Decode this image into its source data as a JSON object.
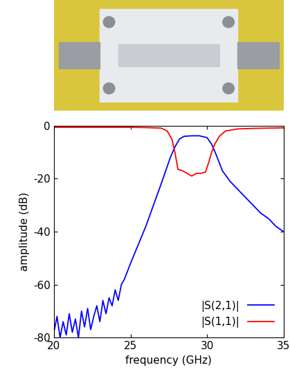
{
  "chart_data": {
    "type": "line",
    "x_label": "frequency (GHz)",
    "y_label": "amplitude (dB)",
    "xlim": [
      20,
      35
    ],
    "ylim": [
      -80,
      0
    ],
    "xticks": [
      20,
      25,
      30,
      35
    ],
    "yticks": [
      -80,
      -60,
      -40,
      -20,
      0
    ],
    "grid": false,
    "legend": "lower right",
    "series": [
      {
        "name": "|S(2,1)|",
        "color": "#0000ff",
        "x": [
          20.0,
          20.2,
          20.4,
          20.6,
          20.8,
          21.0,
          21.2,
          21.4,
          21.6,
          21.8,
          22.0,
          22.2,
          22.4,
          22.6,
          22.8,
          23.0,
          23.2,
          23.4,
          23.6,
          23.8,
          24.0,
          24.2,
          24.4,
          24.6,
          24.8,
          25.0,
          25.5,
          26.0,
          26.5,
          27.0,
          27.3,
          27.6,
          27.9,
          28.2,
          28.5,
          29.0,
          29.5,
          30.0,
          30.3,
          30.6,
          31.0,
          31.5,
          32.0,
          32.5,
          33.0,
          33.5,
          34.0,
          34.5,
          35.0
        ],
        "values": [
          -78,
          -72,
          -80,
          -74,
          -79,
          -71,
          -78,
          -73,
          -80,
          -70,
          -76,
          -69,
          -77,
          -72,
          -68,
          -74,
          -66,
          -71,
          -65,
          -68,
          -62,
          -66,
          -60,
          -58,
          -55,
          -52,
          -45,
          -38,
          -30,
          -22,
          -17,
          -12,
          -8,
          -5,
          -4,
          -3.8,
          -3.8,
          -4.5,
          -7,
          -11,
          -17,
          -21,
          -24,
          -27,
          -30,
          -33,
          -35,
          -38,
          -40
        ]
      },
      {
        "name": "|S(1,1)|",
        "color": "#ff0000",
        "x": [
          20.0,
          21.0,
          22.0,
          23.0,
          24.0,
          25.0,
          26.0,
          27.0,
          27.4,
          27.7,
          27.9,
          28.1,
          28.4,
          28.7,
          29.0,
          29.3,
          29.6,
          29.9,
          30.1,
          30.3,
          30.5,
          30.8,
          31.2,
          32.0,
          33.0,
          34.0,
          35.0
        ],
        "values": [
          -0.6,
          -0.6,
          -0.6,
          -0.6,
          -0.6,
          -0.6,
          -0.7,
          -0.9,
          -2,
          -5,
          -10,
          -16.5,
          -17,
          -18,
          -19,
          -18,
          -18,
          -17.5,
          -14,
          -10,
          -7,
          -4,
          -2,
          -1.2,
          -1,
          -0.9,
          -0.8
        ]
      }
    ]
  }
}
